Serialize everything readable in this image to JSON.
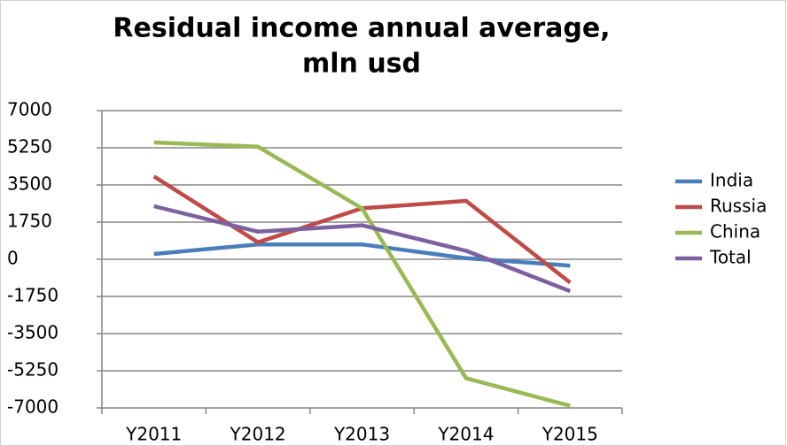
{
  "chart_data": {
    "type": "line",
    "title": [
      "Residual income annual average,",
      "mln usd"
    ],
    "categories": [
      "Y2011",
      "Y2012",
      "Y2013",
      "Y2014",
      "Y2015"
    ],
    "series": [
      {
        "name": "India",
        "color": "#4a7ebb",
        "values": [
          250,
          700,
          700,
          50,
          -300
        ]
      },
      {
        "name": "Russia",
        "color": "#be4b48",
        "values": [
          3900,
          800,
          2400,
          2750,
          -1100
        ]
      },
      {
        "name": "China",
        "color": "#98b954",
        "values": [
          5500,
          5300,
          2400,
          -5600,
          -6900
        ]
      },
      {
        "name": "Total",
        "color": "#7d60a0",
        "values": [
          2500,
          1300,
          1600,
          400,
          -1500
        ]
      }
    ],
    "ylim": [
      -7000,
      7000
    ],
    "yticks": [
      -7000,
      -5250,
      -3500,
      -1750,
      0,
      1750,
      3500,
      5250,
      7000
    ],
    "grid": true,
    "legend": "right"
  }
}
